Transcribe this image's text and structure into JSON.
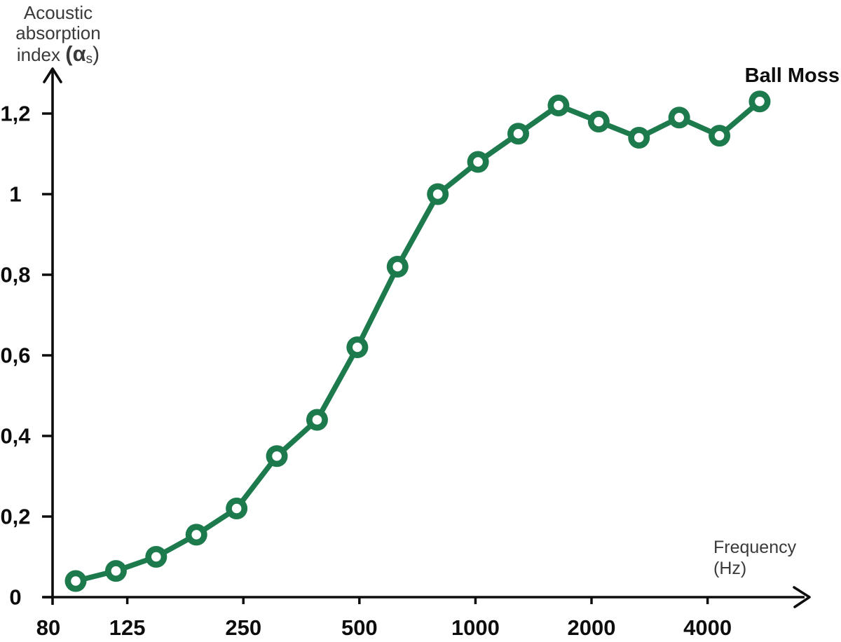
{
  "chart_data": {
    "type": "line",
    "title_lines": [
      "Acoustic",
      "absorption"
    ],
    "title_line3": {
      "prefix": "index ",
      "alpha": "(α",
      "sub": "s",
      "close": ")"
    },
    "title_plain": "Acoustic absorption index (αs)",
    "series_label": "Ball Moss",
    "xlabel_lines": [
      "Frequency",
      "(Hz)"
    ],
    "xlabel_plain": "Frequency (Hz)",
    "x_scale": "log",
    "x_tick_labels": [
      "80",
      "125",
      "250",
      "500",
      "1000",
      "2000",
      "4000"
    ],
    "y_tick_labels": [
      "0",
      "0,2",
      "0,4",
      "0,6",
      "0,8",
      "1",
      "1,2"
    ],
    "y_tick_values": [
      0,
      0.2,
      0.4,
      0.6,
      0.8,
      1.0,
      1.2
    ],
    "ylim": [
      0,
      1.3
    ],
    "frequencies_hz": [
      100,
      125,
      160,
      200,
      250,
      315,
      400,
      500,
      630,
      800,
      1000,
      1250,
      1600,
      2000,
      2500,
      3150,
      4000,
      5000
    ],
    "values": [
      0.04,
      0.065,
      0.1,
      0.155,
      0.22,
      0.35,
      0.44,
      0.62,
      0.82,
      1.0,
      1.08,
      1.15,
      1.22,
      1.18,
      1.14,
      1.19,
      1.145,
      1.23
    ],
    "legend_position": "top-right",
    "grid": "off",
    "colors": {
      "line": "#1d7a4c",
      "marker_fill": "#1d7a4c",
      "marker_hole": "#ffffff",
      "axis": "#0d0d0d",
      "tick_text": "#0d0d0d",
      "label_text": "#3a3a3a"
    }
  }
}
